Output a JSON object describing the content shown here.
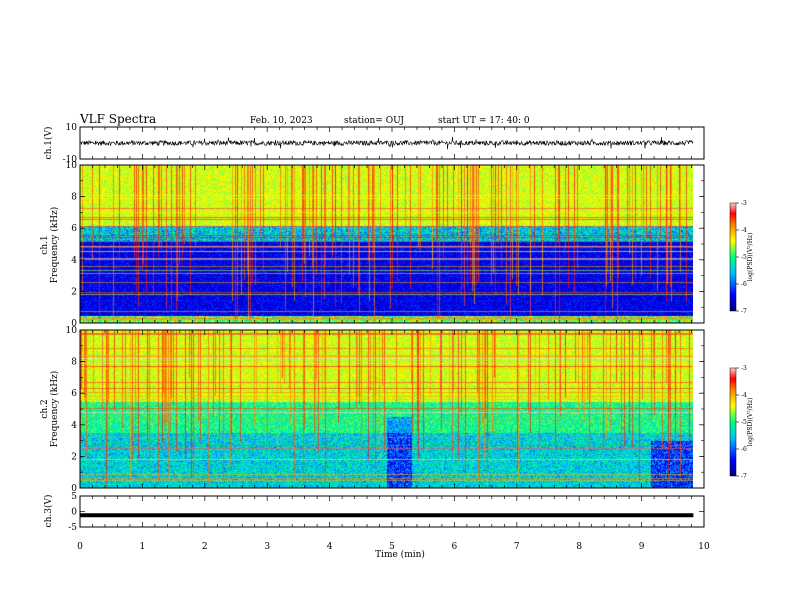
{
  "header": {
    "title": "VLF Spectra",
    "date": "Feb. 10, 2023",
    "station": "station= OUJ",
    "start": "start  UT =   17: 40: 0"
  },
  "chart_data": [
    {
      "type": "line",
      "panel": "ch1-waveform",
      "ylabel": "ch.1(V)",
      "ylim": [
        -10,
        10
      ],
      "yticks": [
        "10",
        "-10"
      ],
      "xlim": [
        0,
        10
      ],
      "data_extent_min": [
        0,
        9.83
      ],
      "approx_level_v": 0,
      "approx_amplitude_v": 2.5,
      "color": "#000000"
    },
    {
      "type": "heatmap",
      "panel": "ch1-spectrogram",
      "ylabel_lines": [
        "ch.1",
        "Frequency (kHz)"
      ],
      "ylim": [
        0,
        10
      ],
      "yticks": [
        "0",
        "2",
        "4",
        "6",
        "8",
        "10"
      ],
      "xlim": [
        0,
        10
      ],
      "data_extent_min": [
        0,
        9.83
      ],
      "colorbar": {
        "label": "log(PSD)(V²/Hz)",
        "range": [
          -7,
          -3
        ],
        "ticks": [
          "-3",
          "-4",
          "-5",
          "-6",
          "-7"
        ]
      }
    },
    {
      "type": "heatmap",
      "panel": "ch2-spectrogram",
      "ylabel_lines": [
        "ch.2",
        "Frequency (kHz)"
      ],
      "ylim": [
        0,
        10
      ],
      "yticks": [
        "0",
        "2",
        "4",
        "6",
        "8",
        "10"
      ],
      "xlim": [
        0,
        10
      ],
      "data_extent_min": [
        0,
        9.83
      ],
      "colorbar": {
        "label": "log(PSD)(V²/Hz)",
        "range": [
          -7,
          -3
        ],
        "ticks": [
          "-3",
          "-4",
          "-5",
          "-6",
          "-7"
        ]
      }
    },
    {
      "type": "line",
      "panel": "ch3-waveform",
      "ylabel": "ch.3(V)",
      "ylim": [
        -5,
        5
      ],
      "yticks": [
        "5",
        "0",
        "-5"
      ],
      "xlim": [
        0,
        10
      ],
      "data_extent_min": [
        0,
        9.83
      ],
      "approx_level_v": -1.2,
      "color": "#000000"
    }
  ],
  "xaxis": {
    "label": "Time (min)",
    "ticks": [
      "0",
      "1",
      "2",
      "3",
      "4",
      "5",
      "6",
      "7",
      "8",
      "9",
      "10"
    ]
  },
  "colors": {
    "colormap": [
      "#000080",
      "#0000ff",
      "#00c0ff",
      "#00ff80",
      "#ffff00",
      "#ff8000",
      "#ff0000",
      "#ffd0d0"
    ]
  }
}
